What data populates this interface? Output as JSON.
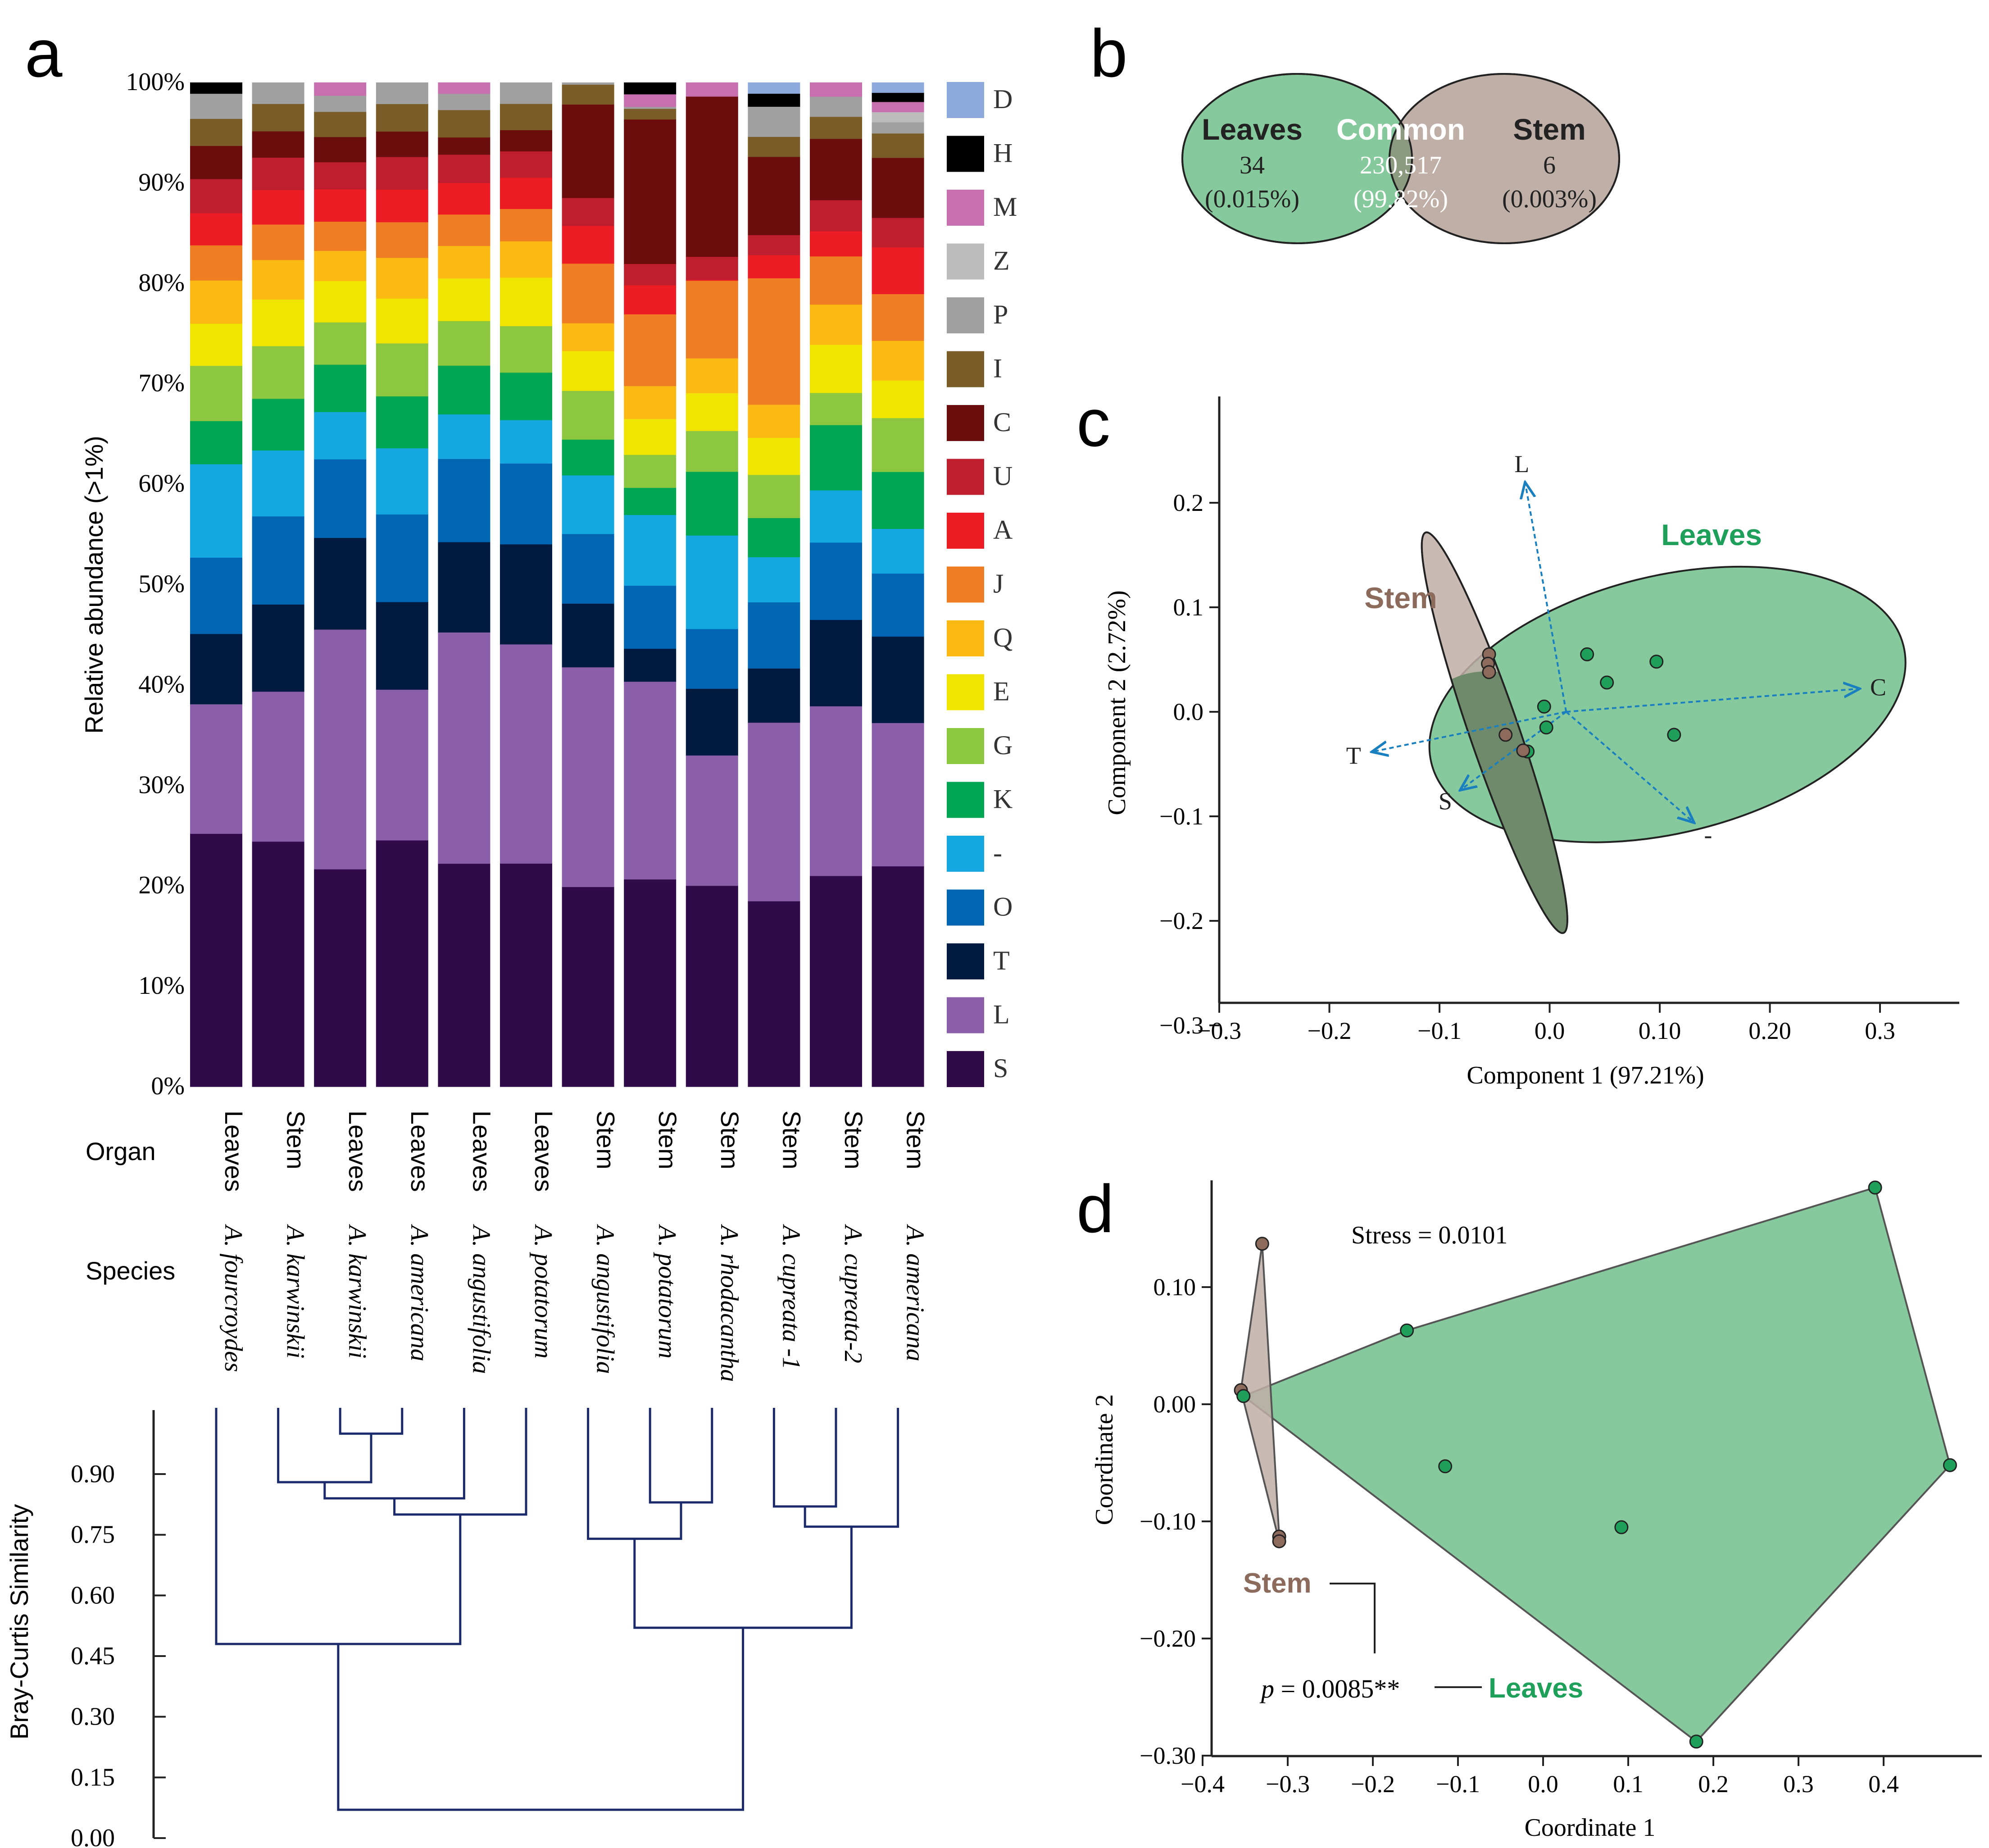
{
  "panels": {
    "a": "a",
    "b": "b",
    "c": "c",
    "d": "d"
  },
  "chart_data": [
    {
      "id": "a-stacked-bar",
      "type": "bar",
      "stacked": true,
      "ylabel": "Relative abundance (>1%)",
      "ylim": [
        0,
        100
      ],
      "yticks": [
        "0%",
        "10%",
        "20%",
        "30%",
        "40%",
        "50%",
        "60%",
        "70%",
        "80%",
        "90%",
        "100%"
      ],
      "organ_label": "Organ",
      "species_label": "Species",
      "categories": [
        "A. fourcroydes",
        "A. karwinskii",
        "A. karwinskii",
        "A. americana",
        "A. angustifolia",
        "A. potatorum",
        "A. angustifolia",
        "A. potatorum",
        "A. rhodacantha",
        "A. cupreata -1",
        "A. cupreata-2",
        "A. americana"
      ],
      "organs": [
        "Leaves",
        "Stem",
        "Leaves",
        "Leaves",
        "Leaves",
        "Leaves",
        "Stem",
        "Stem",
        "Stem",
        "Stem",
        "Stem",
        "Stem"
      ],
      "series": [
        {
          "name": "S",
          "color": "#310a4a",
          "values": [
            25.2,
            24.2,
            21.6,
            24.2,
            22.0,
            22.1,
            20.1,
            21.4,
            20.2,
            18.5,
            21.0,
            21.7
          ]
        },
        {
          "name": "L",
          "color": "#8a5ea8",
          "values": [
            12.9,
            14.8,
            23.8,
            14.8,
            22.8,
            21.7,
            22.1,
            20.4,
            13.1,
            17.8,
            16.9,
            14.1
          ]
        },
        {
          "name": "T",
          "color": "#001a40",
          "values": [
            7.0,
            8.6,
            9.1,
            8.6,
            8.9,
            9.9,
            6.4,
            3.4,
            6.7,
            5.4,
            8.6,
            8.5
          ]
        },
        {
          "name": "O",
          "color": "#0066b3",
          "values": [
            7.6,
            8.7,
            7.8,
            8.6,
            8.2,
            8.0,
            7.0,
            6.5,
            6.0,
            6.6,
            7.7,
            6.2
          ]
        },
        {
          "name": "-",
          "color": "#14a7e0",
          "values": [
            9.3,
            6.5,
            4.7,
            6.5,
            4.4,
            4.3,
            5.9,
            7.3,
            9.4,
            4.5,
            5.2,
            4.4
          ]
        },
        {
          "name": "K",
          "color": "#00a651",
          "values": [
            4.3,
            5.1,
            4.7,
            5.1,
            4.8,
            4.7,
            3.6,
            2.8,
            6.4,
            3.9,
            6.5,
            5.6
          ]
        },
        {
          "name": "G",
          "color": "#8dc63f",
          "values": [
            5.5,
            5.2,
            4.2,
            5.2,
            4.4,
            4.6,
            4.9,
            3.4,
            4.1,
            4.3,
            3.2,
            5.3
          ]
        },
        {
          "name": "E",
          "color": "#f0e500",
          "values": [
            4.2,
            4.6,
            4.1,
            4.4,
            4.2,
            4.8,
            4.0,
            3.7,
            3.8,
            3.7,
            4.8,
            3.7
          ]
        },
        {
          "name": "Q",
          "color": "#fdb913",
          "values": [
            4.3,
            3.9,
            3.0,
            4.0,
            3.2,
            3.6,
            2.8,
            3.4,
            3.5,
            3.3,
            4.0,
            3.9
          ]
        },
        {
          "name": "J",
          "color": "#ee7d23",
          "values": [
            3.5,
            3.5,
            2.9,
            3.5,
            3.1,
            3.2,
            6.0,
            7.4,
            7.8,
            12.6,
            4.8,
            4.6
          ]
        },
        {
          "name": "A",
          "color": "#ed1c24",
          "values": [
            3.2,
            3.4,
            3.2,
            3.2,
            3.1,
            3.1,
            3.8,
            3.0,
            0.1,
            2.3,
            2.5,
            4.6
          ]
        },
        {
          "name": "U",
          "color": "#be1e2d",
          "values": [
            3.4,
            3.2,
            2.7,
            3.2,
            2.8,
            2.6,
            2.8,
            2.2,
            2.3,
            2.0,
            3.1,
            2.9
          ]
        },
        {
          "name": "C",
          "color": "#6b0d0d",
          "values": [
            3.3,
            2.6,
            2.5,
            2.5,
            1.7,
            2.1,
            9.4,
            14.9,
            16.1,
            7.8,
            6.1,
            5.9
          ]
        },
        {
          "name": "I",
          "color": "#7a5c28",
          "values": [
            2.7,
            2.7,
            2.5,
            2.7,
            2.7,
            2.6,
            2.0,
            1.1,
            0.0,
            2.0,
            2.2,
            2.4
          ]
        },
        {
          "name": "P",
          "color": "#a0a0a0",
          "values": [
            2.5,
            2.1,
            1.6,
            2.1,
            1.6,
            2.1,
            0.2,
            0.2,
            0.0,
            3.0,
            2.0,
            1.1
          ]
        },
        {
          "name": "Z",
          "color": "#bcbcbc",
          "values": [
            0.0,
            0.0,
            0.0,
            0.0,
            0.0,
            0.0,
            0.0,
            0.0,
            0.0,
            0.0,
            0.0,
            1.0
          ]
        },
        {
          "name": "M",
          "color": "#c86fb0",
          "values": [
            0.0,
            0.0,
            1.3,
            0.0,
            1.1,
            0.0,
            0.0,
            1.3,
            1.4,
            0.0,
            1.4,
            1.0
          ]
        },
        {
          "name": "H",
          "color": "#000000",
          "values": [
            1.1,
            0.0,
            0.0,
            0.0,
            0.0,
            0.0,
            0.0,
            1.2,
            0.0,
            1.3,
            0.0,
            0.9
          ]
        },
        {
          "name": "D",
          "color": "#8da9db",
          "values": [
            0.0,
            0.0,
            0.0,
            0.0,
            0.0,
            0.0,
            0.0,
            0.0,
            0.0,
            1.1,
            0.0,
            1.0
          ]
        }
      ],
      "legend_order": [
        "D",
        "H",
        "M",
        "Z",
        "P",
        "I",
        "C",
        "U",
        "A",
        "J",
        "Q",
        "E",
        "G",
        "K",
        "-",
        "O",
        "T",
        "L",
        "S"
      ],
      "dendrogram": {
        "ylabel": "Bray-Curtis Similarity",
        "yticks": [
          "0.90",
          "0.75",
          "0.60",
          "0.45",
          "0.30",
          "0.15",
          "0.00"
        ],
        "tick_values": [
          0.9,
          0.75,
          0.6,
          0.45,
          0.3,
          0.15,
          0.0
        ],
        "merges": [
          {
            "a": 2,
            "b": 3,
            "sim": 1.0
          },
          {
            "a": 1,
            "b": 12,
            "sim": 0.88
          },
          {
            "a": 13,
            "b": 4,
            "sim": 0.84
          },
          {
            "a": 14,
            "b": 5,
            "sim": 0.8
          },
          {
            "a": 0,
            "b": 15,
            "sim": 0.48
          },
          {
            "a": 7,
            "b": 8,
            "sim": 0.83
          },
          {
            "a": 6,
            "b": 17,
            "sim": 0.74
          },
          {
            "a": 9,
            "b": 10,
            "sim": 0.82
          },
          {
            "a": 19,
            "b": 11,
            "sim": 0.77
          },
          {
            "a": 18,
            "b": 20,
            "sim": 0.52
          },
          {
            "a": 16,
            "b": 21,
            "sim": 0.07
          }
        ]
      }
    },
    {
      "id": "b-venn",
      "type": "venn",
      "sets": [
        {
          "label": "Leaves",
          "count": "34",
          "pct": "(0.015%)",
          "color": "#86c99c"
        },
        {
          "label": "Common",
          "count": "230,517",
          "pct": "(99.82%)",
          "color": "#8c9a80"
        },
        {
          "label": "Stem",
          "count": "6",
          "pct": "(0.003%)",
          "color": "#bfafa6"
        }
      ]
    },
    {
      "id": "c-pca",
      "type": "scatter",
      "xlabel": "Component 1 (97.21%)",
      "ylabel": "Component 2 (2.72%)",
      "xlim": [
        -0.3,
        0.37
      ],
      "ylim": [
        -0.3,
        0.3
      ],
      "xticks": [
        -0.3,
        -0.2,
        -0.1,
        0.0,
        0.1,
        0.2,
        0.3
      ],
      "xtick_labels": [
        "−0.3",
        "−0.2",
        "−0.1",
        "0.0",
        "0.10",
        "0.20",
        "0.3"
      ],
      "yticks": [
        0.2,
        0.1,
        0.0,
        -0.1,
        -0.2,
        -0.3
      ],
      "ytick_labels": [
        "0.2",
        "0.1",
        "0.0",
        "−0.1",
        "−0.2",
        "−0.3"
      ],
      "group_labels": {
        "leaves": "Leaves",
        "stem": "Stem"
      },
      "leaves_points": [
        [
          -0.005,
          0.005
        ],
        [
          -0.003,
          -0.015
        ],
        [
          0.034,
          0.055
        ],
        [
          0.052,
          0.028
        ],
        [
          0.097,
          0.048
        ],
        [
          0.113,
          -0.022
        ],
        [
          -0.02,
          -0.038
        ]
      ],
      "stem_points": [
        [
          -0.055,
          0.055
        ],
        [
          -0.056,
          0.046
        ],
        [
          -0.055,
          0.038
        ],
        [
          -0.04,
          -0.022
        ],
        [
          -0.024,
          -0.037
        ]
      ],
      "leaves_ellipse": {
        "cx": 0.107,
        "cy": 0.007,
        "rx": 0.228,
        "ry": 0.1,
        "angle_deg": 14
      },
      "stem_ellipse": {
        "cx": -0.05,
        "cy": -0.02,
        "rx": 0.19,
        "ry": 0.02,
        "angle_deg": -71
      },
      "loadings": [
        {
          "label": "L",
          "x": -0.022,
          "y": 0.218
        },
        {
          "label": "C",
          "x": 0.28,
          "y": 0.022
        },
        {
          "label": "T",
          "x": -0.16,
          "y": -0.038
        },
        {
          "label": "S",
          "x": -0.08,
          "y": -0.074
        },
        {
          "label": "-",
          "x": 0.13,
          "y": -0.105
        }
      ],
      "colors": {
        "leaves": "#1ea05a",
        "leaves_fill": "#86c99c",
        "stem_fill": "#bfafa6",
        "stem_point": "#8c6a5c",
        "arrow": "#1a7fbf"
      }
    },
    {
      "id": "d-nmds",
      "type": "scatter",
      "xlabel": "Coordinate 1",
      "ylabel": "Coordinate 2",
      "xlim": [
        -0.4,
        0.48
      ],
      "ylim": [
        -0.3,
        0.17
      ],
      "xticks": [
        -0.4,
        -0.3,
        -0.2,
        -0.1,
        0.0,
        0.1,
        0.2,
        0.3,
        0.4
      ],
      "xtick_labels": [
        "−0.4",
        "−0.3",
        "−0.2",
        "−0.1",
        "0.0",
        "0.1",
        "0.2",
        "0.3",
        "0.4"
      ],
      "yticks": [
        0.1,
        0.0,
        -0.1,
        -0.2,
        -0.3
      ],
      "ytick_labels": [
        "0.10",
        "0.00",
        "−0.10",
        "−0.20",
        "−0.30"
      ],
      "stress": "Stress = 0.0101",
      "p_label": "p",
      "p_value": " = 0.0085**",
      "group_labels": {
        "leaves": "Leaves",
        "stem": "Stem"
      },
      "leaves_points": [
        [
          -0.352,
          0.007
        ],
        [
          -0.16,
          0.063
        ],
        [
          -0.115,
          -0.053
        ],
        [
          0.092,
          -0.105
        ],
        [
          0.39,
          0.185
        ],
        [
          0.478,
          -0.052
        ],
        [
          0.18,
          -0.288
        ]
      ],
      "leaves_hull": [
        [
          -0.352,
          0.007
        ],
        [
          -0.16,
          0.063
        ],
        [
          0.39,
          0.185
        ],
        [
          0.478,
          -0.052
        ],
        [
          0.18,
          -0.288
        ]
      ],
      "stem_points": [
        [
          -0.33,
          0.137
        ],
        [
          -0.355,
          0.012
        ],
        [
          -0.31,
          -0.113
        ],
        [
          -0.31,
          -0.117
        ]
      ],
      "stem_hull": [
        [
          -0.33,
          0.137
        ],
        [
          -0.355,
          0.012
        ],
        [
          -0.31,
          -0.117
        ],
        [
          -0.31,
          -0.113
        ]
      ],
      "colors": {
        "leaves": "#1ea05a",
        "leaves_fill": "#86c99c",
        "stem_fill": "#bfafa6",
        "stem_point": "#8c6a5c",
        "label_leaves": "#1ea05a",
        "label_stem": "#8c6a5c"
      }
    }
  ]
}
